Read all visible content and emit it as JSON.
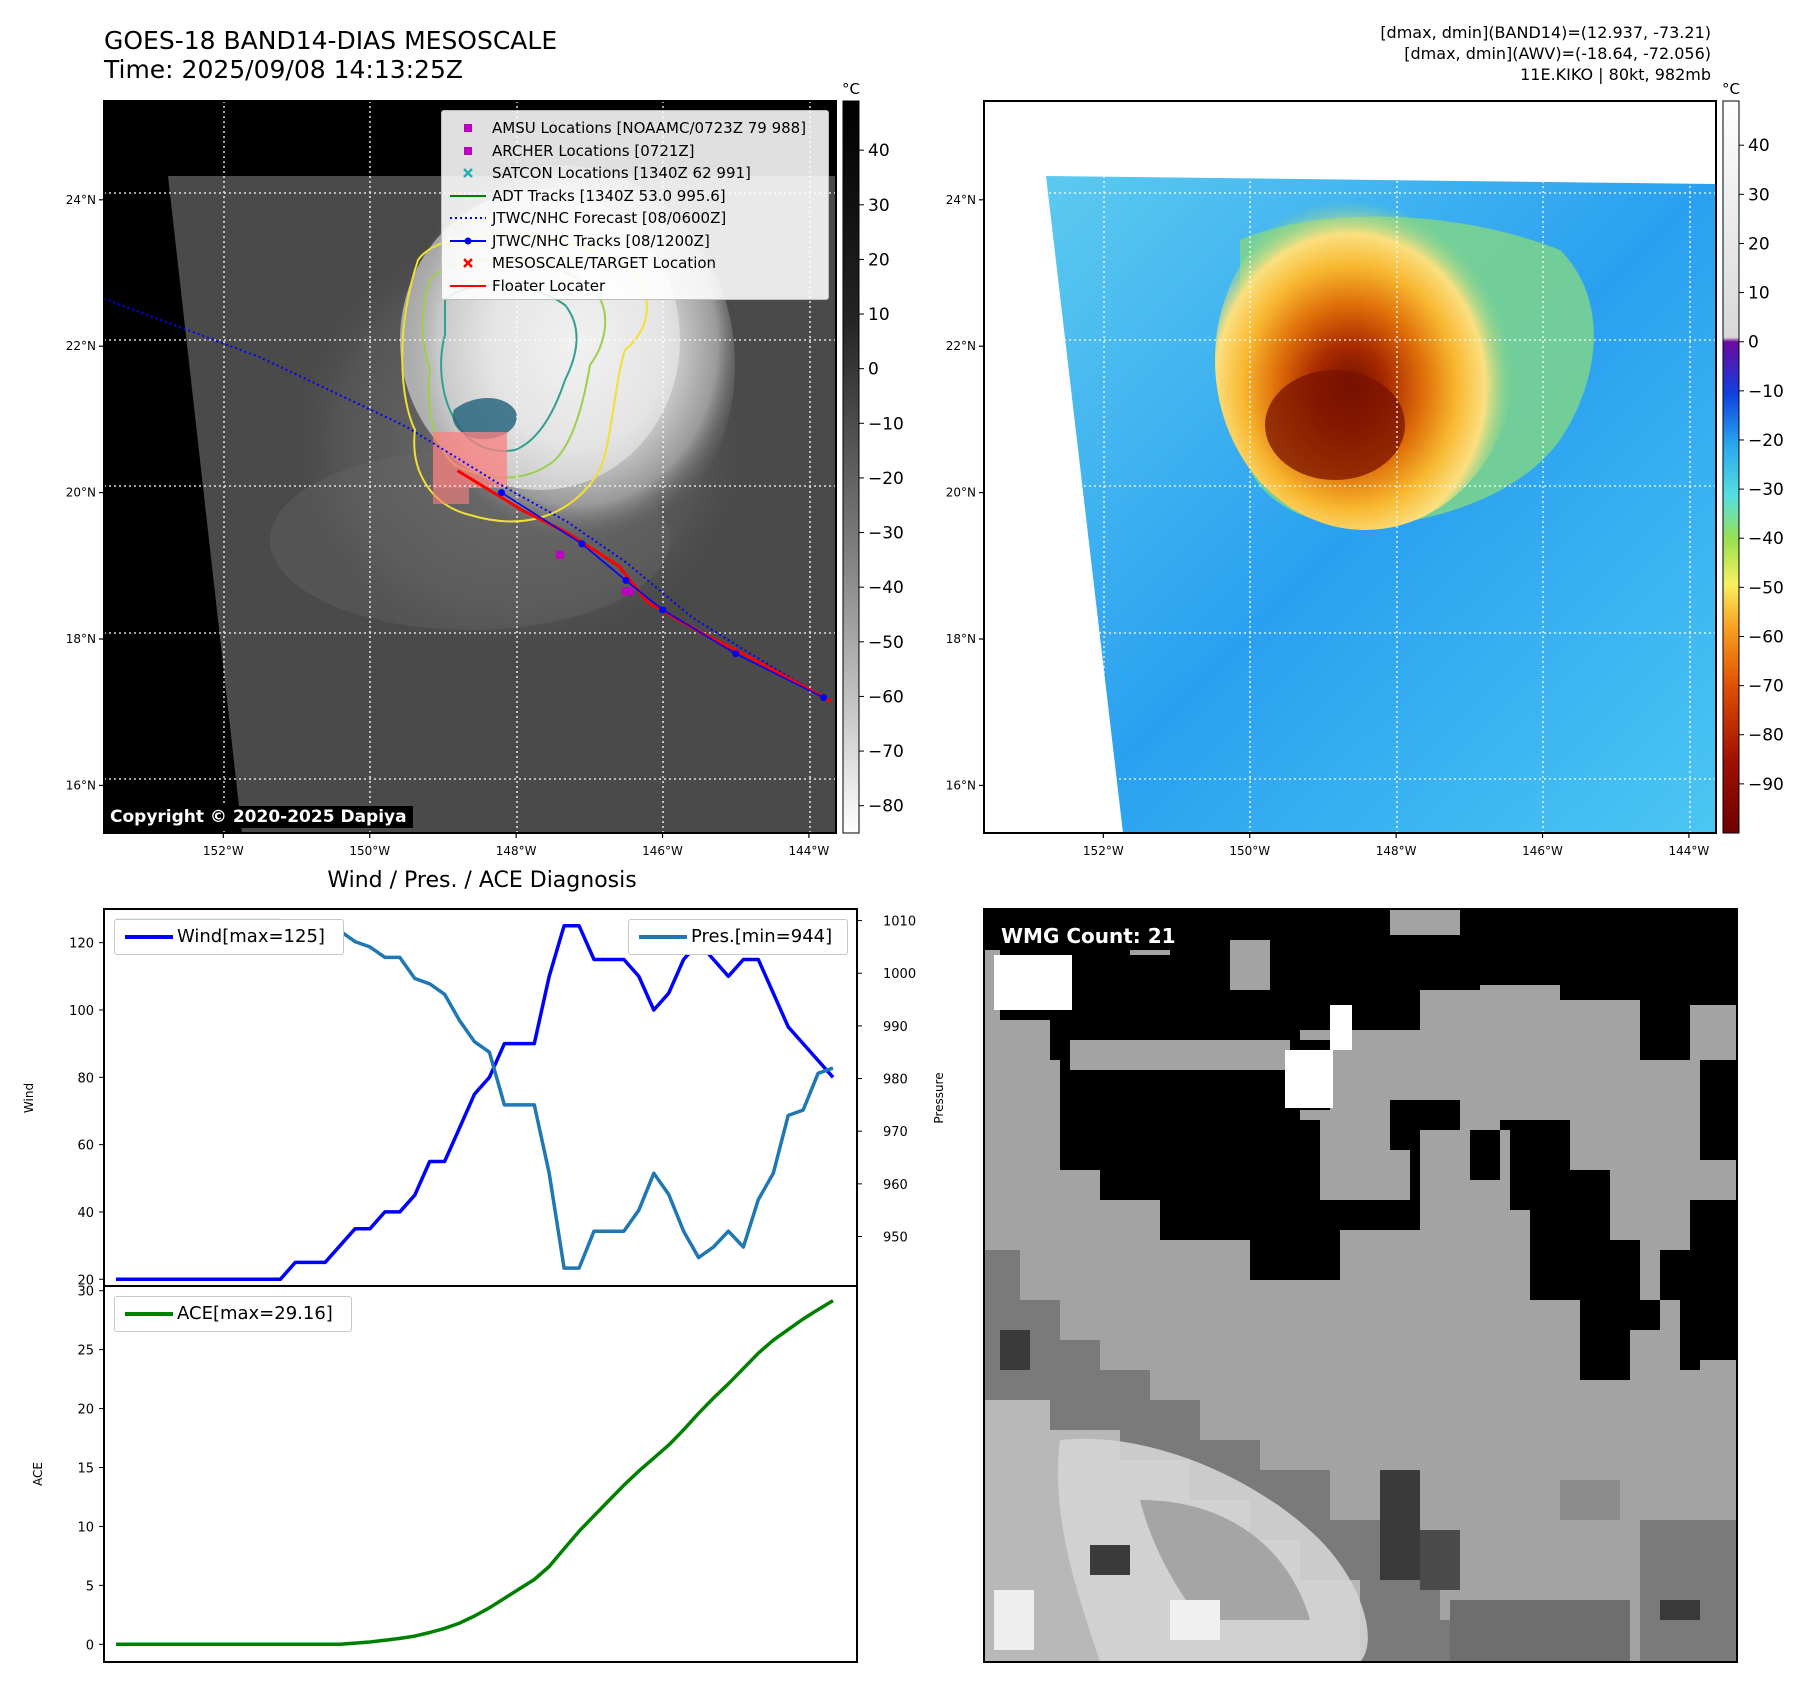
{
  "header": {
    "title_line1": "GOES-18 BAND14-DIAS MESOSCALE",
    "title_line2": "Time: 2025/09/08 14:13:25Z",
    "info_line1": "[dmax, dmin](BAND14)=(12.937, -73.21)",
    "info_line2": "[dmax, dmin](AWV)=(-18.64, -72.056)",
    "info_line3": "11E.KIKO | 80kt, 982mb"
  },
  "copyright": "Copyright © 2020-2025 Dapiya",
  "wmg_label": "WMG Count: 21",
  "maps": {
    "lat_labels": [
      "24°N",
      "22°N",
      "20°N",
      "18°N",
      "16°N"
    ],
    "lat_values": [
      24,
      22,
      20,
      18,
      16
    ],
    "lon_labels": [
      "152°W",
      "150°W",
      "148°W",
      "146°W",
      "144°W"
    ],
    "lon_values": [
      -152,
      -150,
      -148,
      -146,
      -144
    ],
    "lon_range": [
      -153.63,
      -143.63
    ],
    "lat_range": [
      15.35,
      25.35
    ],
    "colorbar_unit": "°C",
    "colorbar1_ticks": [
      40,
      30,
      20,
      10,
      0,
      -10,
      -20,
      -30,
      -40,
      -50,
      -60,
      -70,
      -80
    ],
    "colorbar1_tick_labels": [
      "40",
      "30",
      "20",
      "10",
      "0",
      "−10",
      "−20",
      "−30",
      "−40",
      "−50",
      "−60",
      "−70",
      "−80"
    ],
    "colorbar1_range": [
      49,
      -85
    ],
    "colorbar2_ticks": [
      40,
      30,
      20,
      10,
      0,
      -10,
      -20,
      -30,
      -40,
      -50,
      -60,
      -70,
      -80,
      -90
    ],
    "colorbar2_tick_labels": [
      "40",
      "30",
      "20",
      "10",
      "0",
      "−10",
      "−20",
      "−30",
      "−40",
      "−50",
      "−60",
      "−70",
      "−80",
      "−90"
    ],
    "colorbar2_range": [
      49,
      -100
    ],
    "legend": [
      {
        "label": "AMSU Locations [NOAAMC/0723Z 79 988]",
        "marker": "square",
        "color": "#c000c0"
      },
      {
        "label": "ARCHER Locations [0721Z]",
        "marker": "square",
        "color": "#c000c0"
      },
      {
        "label": "SATCON Locations [1340Z 62 991]",
        "marker": "x",
        "color": "#20b0b0"
      },
      {
        "label": "ADT Tracks [1340Z 53.0 995.6]",
        "marker": "line",
        "color": "#008000"
      },
      {
        "label": "JTWC/NHC Forecast [08/0600Z]",
        "marker": "dotted",
        "color": "#0000ff"
      },
      {
        "label": "JTWC/NHC Tracks [08/1200Z]",
        "marker": "line-dot",
        "color": "#0000ff"
      },
      {
        "label": "MESOSCALE/TARGET Location",
        "marker": "x",
        "color": "#ff0000"
      },
      {
        "label": "Floater Locater",
        "marker": "line",
        "color": "#ff0000"
      }
    ],
    "forecast_track": [
      [
        -153.63,
        22.65
      ],
      [
        -151.5,
        21.85
      ],
      [
        -149.5,
        20.9
      ],
      [
        -148.2,
        20.1
      ],
      [
        -147.3,
        19.6
      ],
      [
        -146.5,
        19.05
      ],
      [
        -145.6,
        18.3
      ],
      [
        -144.8,
        17.8
      ],
      [
        -143.8,
        17.2
      ]
    ],
    "nhc_track": [
      [
        -148.2,
        20.0
      ],
      [
        -147.1,
        19.3
      ],
      [
        -146.5,
        18.8
      ],
      [
        -146.0,
        18.4
      ],
      [
        -145.0,
        17.8
      ],
      [
        -143.8,
        17.2
      ]
    ],
    "floater_track": [
      [
        -148.8,
        20.3
      ],
      [
        -147.9,
        19.75
      ],
      [
        -147.3,
        19.45
      ],
      [
        -146.6,
        19.0
      ],
      [
        -146.2,
        18.5
      ],
      [
        -145.5,
        18.1
      ],
      [
        -144.9,
        17.8
      ],
      [
        -143.7,
        17.15
      ]
    ],
    "amsu_points": [
      [
        -147.4,
        19.15
      ],
      [
        -146.5,
        18.65
      ]
    ],
    "archer_points": [
      [
        -146.45,
        18.65
      ]
    ]
  },
  "chart_data": [
    {
      "type": "line",
      "title": "Wind / Pres. / ACE Diagnosis",
      "ylabel": "Wind",
      "y2label": "Pressure",
      "ylim": [
        18,
        130
      ],
      "y2lim": [
        940.6,
        1012.2
      ],
      "yticks": [
        20,
        40,
        60,
        80,
        100,
        120
      ],
      "y2ticks": [
        950,
        960,
        970,
        980,
        990,
        1000,
        1010
      ],
      "series": [
        {
          "name": "Wind[max=125]",
          "axis": "left",
          "color": "#0000ff",
          "values": [
            20,
            20,
            20,
            20,
            20,
            20,
            20,
            20,
            20,
            20,
            20,
            20,
            25,
            25,
            25,
            30,
            35,
            35,
            40,
            40,
            45,
            55,
            55,
            65,
            75,
            80,
            90,
            90,
            90,
            110,
            125,
            125,
            115,
            115,
            115,
            110,
            100,
            105,
            115,
            120,
            115,
            110,
            115,
            115,
            105,
            95,
            90,
            85,
            80
          ]
        },
        {
          "name": "Pres.[min=944]",
          "axis": "right",
          "color": "#1f77b4",
          "values": [
            1010,
            1010,
            1010,
            1010,
            1010,
            1010,
            1010,
            1010,
            1010,
            1010,
            1010,
            1010,
            1009,
            1008,
            1008,
            1008,
            1006,
            1005,
            1003,
            1003,
            999,
            998,
            996,
            991,
            987,
            985,
            975,
            975,
            975,
            962,
            944,
            944,
            951,
            951,
            951,
            955,
            962,
            958,
            951,
            946,
            948,
            951,
            948,
            957,
            962,
            973,
            974,
            981,
            982
          ]
        }
      ]
    },
    {
      "type": "line",
      "ylabel": "ACE",
      "ylim": [
        -1.5,
        30.4
      ],
      "yticks": [
        0,
        5,
        10,
        15,
        20,
        25,
        30
      ],
      "series": [
        {
          "name": "ACE[max=29.16]",
          "color": "#008000",
          "values": [
            0,
            0,
            0,
            0,
            0,
            0,
            0,
            0,
            0,
            0,
            0,
            0,
            0,
            0,
            0,
            0,
            0.1,
            0.2,
            0.35,
            0.5,
            0.7,
            1.0,
            1.35,
            1.8,
            2.4,
            3.1,
            3.9,
            4.7,
            5.5,
            6.6,
            8.1,
            9.6,
            10.9,
            12.2,
            13.5,
            14.7,
            15.8,
            16.9,
            18.2,
            19.6,
            20.9,
            22.1,
            23.4,
            24.7,
            25.8,
            26.7,
            27.6,
            28.4,
            29.16
          ]
        }
      ]
    }
  ]
}
